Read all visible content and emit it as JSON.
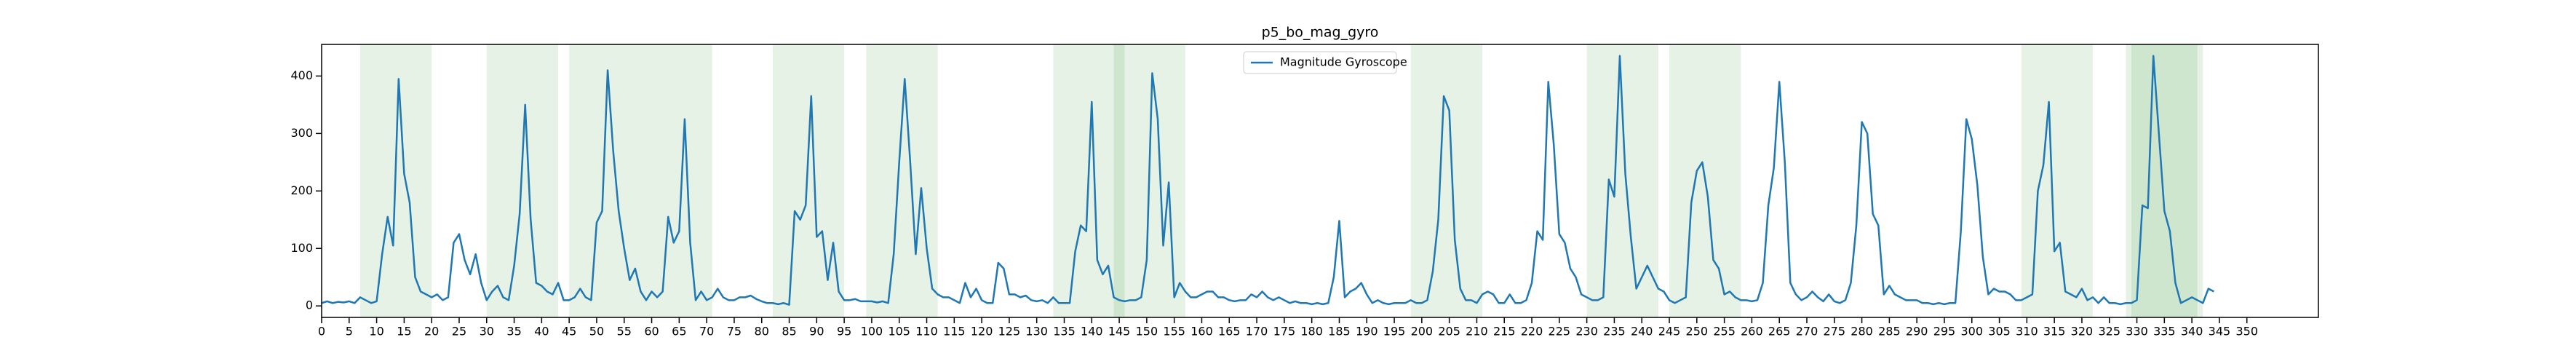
{
  "chart_data": {
    "type": "line",
    "title": "p5_bo_mag_gyro",
    "x": [
      0,
      1,
      2,
      3,
      4,
      5,
      6,
      7,
      8,
      9,
      10,
      11,
      12,
      13,
      14,
      15,
      16,
      17,
      18,
      19,
      20,
      21,
      22,
      23,
      24,
      25,
      26,
      27,
      28,
      29,
      30,
      31,
      32,
      33,
      34,
      35,
      36,
      37,
      38,
      39,
      40,
      41,
      42,
      43,
      44,
      45,
      46,
      47,
      48,
      49,
      50,
      51,
      52,
      53,
      54,
      55,
      56,
      57,
      58,
      59,
      60,
      61,
      62,
      63,
      64,
      65,
      66,
      67,
      68,
      69,
      70,
      71,
      72,
      73,
      74,
      75,
      76,
      77,
      78,
      79,
      80,
      81,
      82,
      83,
      84,
      85,
      86,
      87,
      88,
      89,
      90,
      91,
      92,
      93,
      94,
      95,
      96,
      97,
      98,
      99,
      100,
      101,
      102,
      103,
      104,
      105,
      106,
      107,
      108,
      109,
      110,
      111,
      112,
      113,
      114,
      115,
      116,
      117,
      118,
      119,
      120,
      121,
      122,
      123,
      124,
      125,
      126,
      127,
      128,
      129,
      130,
      131,
      132,
      133,
      134,
      135,
      136,
      137,
      138,
      139,
      140,
      141,
      142,
      143,
      144,
      145,
      146,
      147,
      148,
      149,
      150,
      151,
      152,
      153,
      154,
      155,
      156,
      157,
      158,
      159,
      160,
      161,
      162,
      163,
      164,
      165,
      166,
      167,
      168,
      169,
      170,
      171,
      172,
      173,
      174,
      175,
      176,
      177,
      178,
      179,
      180,
      181,
      182,
      183,
      184,
      185,
      186,
      187,
      188,
      189,
      190,
      191,
      192,
      193,
      194,
      195,
      196,
      197,
      198,
      199,
      200,
      201,
      202,
      203,
      204,
      205,
      206,
      207,
      208,
      209,
      210,
      211,
      212,
      213,
      214,
      215,
      216,
      217,
      218,
      219,
      220,
      221,
      222,
      223,
      224,
      225,
      226,
      227,
      228,
      229,
      230,
      231,
      232,
      233,
      234,
      235,
      236,
      237,
      238,
      239,
      240,
      241,
      242,
      243,
      244,
      245,
      246,
      247,
      248,
      249,
      250,
      251,
      252,
      253,
      254,
      255,
      256,
      257,
      258,
      259,
      260,
      261,
      262,
      263,
      264,
      265,
      266,
      267,
      268,
      269,
      270,
      271,
      272,
      273,
      274,
      275,
      276,
      277,
      278,
      279,
      280,
      281,
      282,
      283,
      284,
      285,
      286,
      287,
      288,
      289,
      290,
      291,
      292,
      293,
      294,
      295,
      296,
      297,
      298,
      299,
      300,
      301,
      302,
      303,
      304,
      305,
      306,
      307,
      308,
      309,
      310,
      311,
      312,
      313,
      314,
      315,
      316,
      317,
      318,
      319,
      320,
      321,
      322,
      323,
      324,
      325,
      326,
      327,
      328,
      329,
      330,
      331,
      332,
      333,
      334,
      335,
      336,
      337,
      338,
      339,
      340,
      341,
      342,
      343,
      344
    ],
    "series": [
      {
        "name": "Magnitude Gyroscope",
        "color": "#1f77b4",
        "values": [
          5,
          8,
          5,
          7,
          6,
          8,
          5,
          15,
          10,
          5,
          8,
          90,
          155,
          105,
          395,
          230,
          180,
          50,
          25,
          20,
          15,
          20,
          10,
          15,
          110,
          125,
          80,
          55,
          90,
          40,
          10,
          25,
          35,
          15,
          10,
          70,
          160,
          350,
          150,
          40,
          35,
          25,
          20,
          40,
          10,
          10,
          15,
          30,
          15,
          10,
          145,
          165,
          410,
          270,
          165,
          100,
          45,
          65,
          25,
          10,
          25,
          15,
          25,
          155,
          110,
          130,
          325,
          110,
          10,
          25,
          10,
          15,
          30,
          15,
          10,
          10,
          15,
          15,
          18,
          12,
          8,
          5,
          5,
          3,
          5,
          2,
          165,
          150,
          175,
          365,
          120,
          130,
          45,
          110,
          25,
          10,
          10,
          12,
          8,
          8,
          8,
          6,
          8,
          5,
          90,
          250,
          395,
          250,
          90,
          205,
          100,
          30,
          20,
          15,
          15,
          10,
          5,
          40,
          15,
          30,
          10,
          5,
          5,
          75,
          65,
          20,
          20,
          15,
          18,
          10,
          8,
          10,
          5,
          15,
          5,
          5,
          5,
          95,
          140,
          130,
          355,
          80,
          55,
          70,
          15,
          10,
          8,
          10,
          10,
          15,
          80,
          405,
          325,
          105,
          215,
          15,
          40,
          25,
          15,
          15,
          20,
          25,
          25,
          15,
          15,
          10,
          8,
          10,
          10,
          20,
          15,
          25,
          15,
          10,
          15,
          10,
          5,
          8,
          5,
          5,
          3,
          5,
          3,
          5,
          50,
          148,
          15,
          25,
          30,
          40,
          20,
          5,
          10,
          5,
          3,
          5,
          5,
          5,
          10,
          5,
          5,
          10,
          60,
          150,
          365,
          340,
          115,
          30,
          10,
          10,
          5,
          20,
          25,
          20,
          5,
          5,
          20,
          5,
          5,
          10,
          40,
          130,
          115,
          390,
          280,
          125,
          110,
          65,
          50,
          20,
          15,
          10,
          10,
          15,
          220,
          190,
          435,
          230,
          120,
          30,
          50,
          70,
          50,
          30,
          25,
          10,
          5,
          10,
          15,
          180,
          235,
          250,
          190,
          80,
          65,
          20,
          25,
          15,
          10,
          10,
          8,
          10,
          40,
          175,
          240,
          390,
          250,
          40,
          20,
          10,
          15,
          25,
          15,
          8,
          20,
          8,
          5,
          10,
          40,
          140,
          320,
          300,
          160,
          140,
          20,
          35,
          20,
          15,
          10,
          10,
          10,
          5,
          5,
          3,
          5,
          3,
          5,
          5,
          130,
          325,
          290,
          210,
          85,
          20,
          30,
          25,
          25,
          20,
          10,
          10,
          15,
          20,
          200,
          245,
          355,
          95,
          110,
          25,
          20,
          15,
          30,
          10,
          15,
          5,
          15,
          5,
          5,
          3,
          5,
          5,
          10,
          175,
          170,
          435,
          300,
          165,
          130,
          40,
          5,
          10,
          15,
          10,
          5,
          30,
          25
        ]
      }
    ],
    "spans": [
      [
        7,
        20
      ],
      [
        30,
        43
      ],
      [
        45,
        58
      ],
      [
        58,
        71
      ],
      [
        82,
        95
      ],
      [
        99,
        112
      ],
      [
        133,
        146
      ],
      [
        144,
        157
      ],
      [
        198,
        211
      ],
      [
        230,
        243
      ],
      [
        245,
        258
      ],
      [
        309,
        322
      ],
      [
        328,
        341
      ],
      [
        329,
        342
      ]
    ],
    "span_color": "#008000",
    "xlim": [
      0,
      363
    ],
    "ylim": [
      -20,
      455
    ],
    "xticks": [
      0,
      5,
      10,
      15,
      20,
      25,
      30,
      35,
      40,
      45,
      50,
      55,
      60,
      65,
      70,
      75,
      80,
      85,
      90,
      95,
      100,
      105,
      110,
      115,
      120,
      125,
      130,
      135,
      140,
      145,
      150,
      155,
      160,
      165,
      170,
      175,
      180,
      185,
      190,
      195,
      200,
      205,
      210,
      215,
      220,
      225,
      230,
      235,
      240,
      245,
      250,
      255,
      260,
      265,
      270,
      275,
      280,
      285,
      290,
      295,
      300,
      305,
      310,
      315,
      320,
      325,
      330,
      335,
      340,
      345,
      350
    ],
    "yticks": [
      0,
      100,
      200,
      300,
      400
    ],
    "legend": "upper center"
  }
}
